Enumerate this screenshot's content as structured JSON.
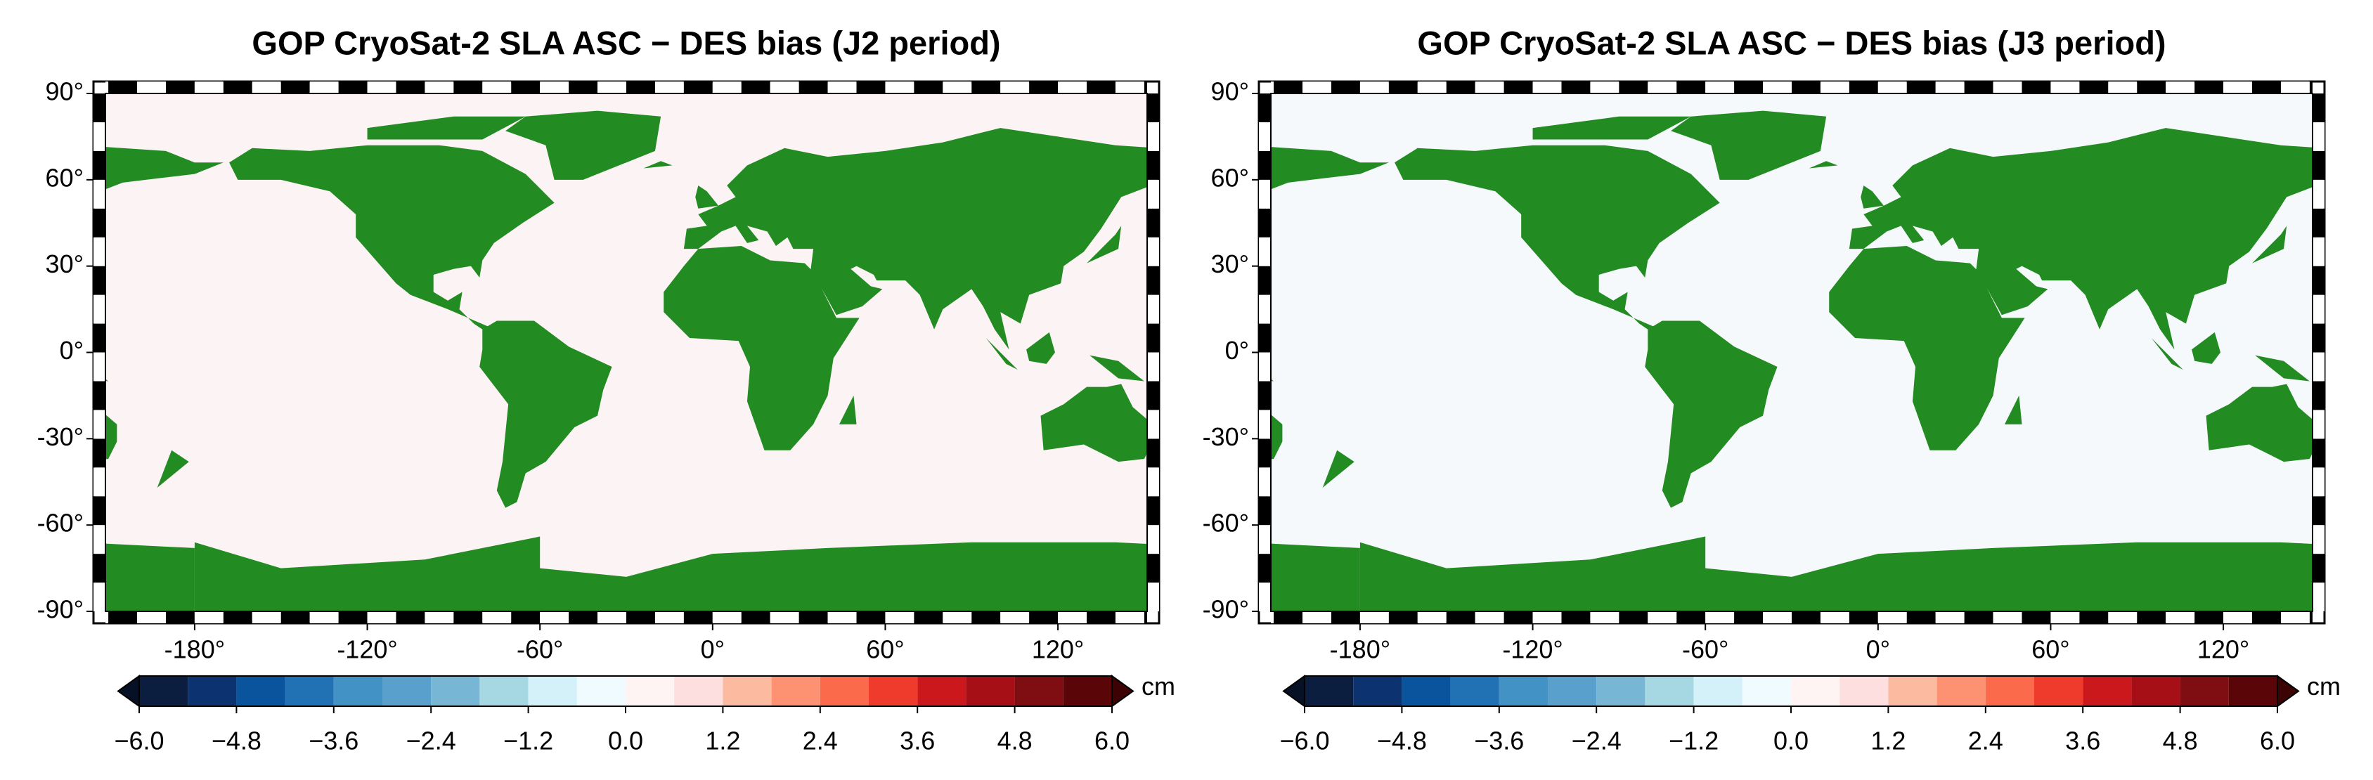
{
  "maps": [
    {
      "title": "GOP CryoSat-2 SLA ASC − DES bias (J2 period)",
      "xlim": [
        -211,
        151
      ],
      "ylim": [
        -90,
        90
      ],
      "xticks": [
        {
          "value": -180,
          "label": "-180°"
        },
        {
          "value": -120,
          "label": "-120°"
        },
        {
          "value": -60,
          "label": "-60°"
        },
        {
          "value": 0,
          "label": "0°"
        },
        {
          "value": 60,
          "label": "60°"
        },
        {
          "value": 120,
          "label": "120°"
        }
      ],
      "yticks": [
        {
          "value": 90,
          "label": "90°"
        },
        {
          "value": 60,
          "label": "60°"
        },
        {
          "value": 30,
          "label": "30°"
        },
        {
          "value": 0,
          "label": "0°"
        },
        {
          "value": -30,
          "label": "-30°"
        },
        {
          "value": -60,
          "label": "-60°"
        },
        {
          "value": -90,
          "label": "-90°"
        }
      ],
      "colorbar": {
        "label": "cm",
        "bounds": [
          -6,
          -5.4,
          -4.8,
          -4.2,
          -3.6,
          -3,
          -2.4,
          -1.8,
          -1.2,
          -0.6,
          0,
          0.6,
          1.2,
          1.8,
          2.4,
          3,
          3.6,
          4.2,
          4.8,
          5.4,
          6
        ],
        "colors": [
          "#0b1e3f",
          "#0d3270",
          "#0a549e",
          "#2171b5",
          "#4292c6",
          "#5aa0cd",
          "#78b6d6",
          "#a6d8e3",
          "#d4f0f8",
          "#f0fbff",
          "#fff4f4",
          "#fddfdf",
          "#fcbba1",
          "#fc9272",
          "#fb6a4a",
          "#ef3b2c",
          "#cb181d",
          "#a50f15",
          "#7f0e12",
          "#5a0508"
        ],
        "under_color": "#061126",
        "over_color": "#3d0204",
        "ticks": [
          {
            "value": -6,
            "label": "−6.0"
          },
          {
            "value": -4.8,
            "label": "−4.8"
          },
          {
            "value": -3.6,
            "label": "−3.6"
          },
          {
            "value": -2.4,
            "label": "−2.4"
          },
          {
            "value": -1.2,
            "label": "−1.2"
          },
          {
            "value": 0,
            "label": "0.0"
          },
          {
            "value": 1.2,
            "label": "1.2"
          },
          {
            "value": 2.4,
            "label": "2.4"
          },
          {
            "value": 3.6,
            "label": "3.6"
          },
          {
            "value": 4.8,
            "label": "4.8"
          },
          {
            "value": 6,
            "label": "6.0"
          }
        ]
      }
    },
    {
      "title": "GOP CryoSat-2 SLA ASC − DES bias (J3 period)",
      "xlim": [
        -211,
        151
      ],
      "ylim": [
        -90,
        90
      ],
      "xticks": [
        {
          "value": -180,
          "label": "-180°"
        },
        {
          "value": -120,
          "label": "-120°"
        },
        {
          "value": -60,
          "label": "-60°"
        },
        {
          "value": 0,
          "label": "0°"
        },
        {
          "value": 60,
          "label": "60°"
        },
        {
          "value": 120,
          "label": "120°"
        }
      ],
      "yticks": [
        {
          "value": 90,
          "label": "90°"
        },
        {
          "value": 60,
          "label": "60°"
        },
        {
          "value": 30,
          "label": "30°"
        },
        {
          "value": 0,
          "label": "0°"
        },
        {
          "value": -30,
          "label": "-30°"
        },
        {
          "value": -60,
          "label": "-60°"
        },
        {
          "value": -90,
          "label": "-90°"
        }
      ],
      "colorbar": {
        "label": "cm",
        "bounds": [
          -6,
          -5.4,
          -4.8,
          -4.2,
          -3.6,
          -3,
          -2.4,
          -1.8,
          -1.2,
          -0.6,
          0,
          0.6,
          1.2,
          1.8,
          2.4,
          3,
          3.6,
          4.2,
          4.8,
          5.4,
          6
        ],
        "colors": [
          "#0b1e3f",
          "#0d3270",
          "#0a549e",
          "#2171b5",
          "#4292c6",
          "#5aa0cd",
          "#78b6d6",
          "#a6d8e3",
          "#d4f0f8",
          "#f0fbff",
          "#fff4f4",
          "#fddfdf",
          "#fcbba1",
          "#fc9272",
          "#fb6a4a",
          "#ef3b2c",
          "#cb181d",
          "#a50f15",
          "#7f0e12",
          "#5a0508"
        ],
        "under_color": "#061126",
        "over_color": "#3d0204",
        "ticks": [
          {
            "value": -6,
            "label": "−6.0"
          },
          {
            "value": -4.8,
            "label": "−4.8"
          },
          {
            "value": -3.6,
            "label": "−3.6"
          },
          {
            "value": -2.4,
            "label": "−2.4"
          },
          {
            "value": -1.2,
            "label": "−1.2"
          },
          {
            "value": 0,
            "label": "0.0"
          },
          {
            "value": 1.2,
            "label": "1.2"
          },
          {
            "value": 2.4,
            "label": "2.4"
          },
          {
            "value": 3.6,
            "label": "3.6"
          },
          {
            "value": 4.8,
            "label": "4.8"
          },
          {
            "value": 6,
            "label": "6.0"
          }
        ]
      }
    }
  ]
}
